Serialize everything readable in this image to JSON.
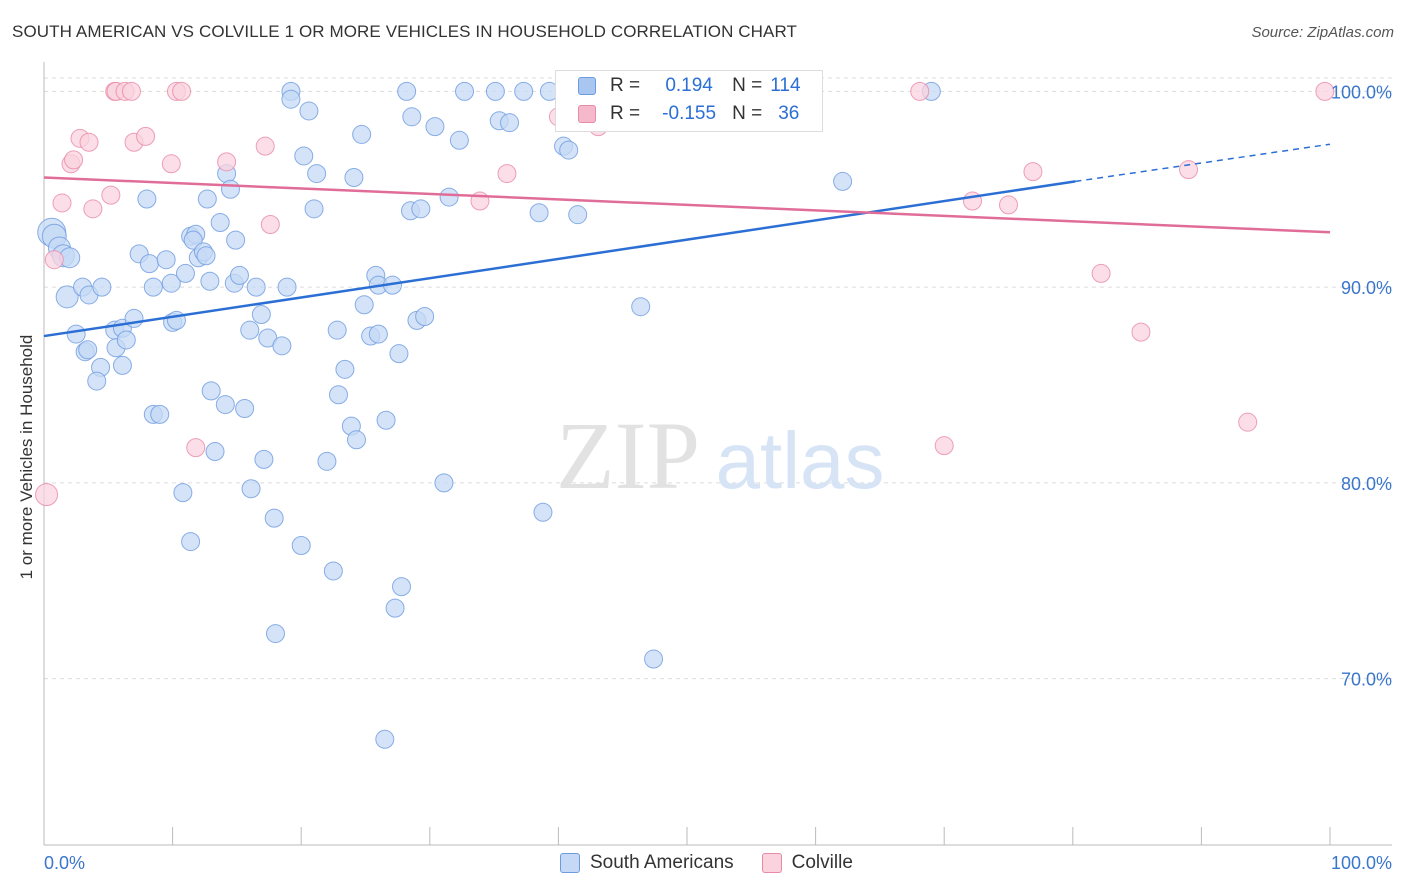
{
  "header": {
    "title": "SOUTH AMERICAN VS COLVILLE 1 OR MORE VEHICLES IN HOUSEHOLD CORRELATION CHART",
    "source": "Source: ZipAtlas.com"
  },
  "watermark": {
    "zip": "ZIP",
    "atlas": "atlas"
  },
  "stats": [
    {
      "r_label": "R =",
      "r_value": "0.194",
      "n_label": "N =",
      "n_value": "114",
      "color": "#a9c6f0",
      "border": "#6e9be0"
    },
    {
      "r_label": "R =",
      "r_value": "-0.155",
      "n_label": "N =",
      "n_value": "36",
      "color": "#f6b9cb",
      "border": "#e88aa8"
    }
  ],
  "legend": [
    {
      "label": "South Americans",
      "color": "#c5d9f6",
      "border": "#6e9be0"
    },
    {
      "label": "Colville",
      "color": "#fad3df",
      "border": "#e88aa8"
    }
  ],
  "chart_data": {
    "type": "scatter",
    "title": "SOUTH AMERICAN VS COLVILLE 1 OR MORE VEHICLES IN HOUSEHOLD CORRELATION CHART",
    "xlabel": "",
    "ylabel": "1 or more Vehicles in Household",
    "xlim": [
      0,
      100
    ],
    "ylim": [
      61.5,
      101.5
    ],
    "x_tick_labels": [
      "0.0%",
      "100.0%"
    ],
    "y_ticks": [
      70,
      80,
      90,
      100
    ],
    "y_tick_labels": [
      "70.0%",
      "80.0%",
      "90.0%",
      "100.0%"
    ],
    "grid": true,
    "legend_position": "bottom-center",
    "series": [
      {
        "name": "South Americans",
        "color": "#6e9be0",
        "fill": "#c5d9f6",
        "trend": {
          "x": [
            0,
            80.2
          ],
          "y": [
            87.5,
            95.4
          ],
          "dashed_to": [
            100,
            97.3
          ],
          "color": "#2b6fd4"
        },
        "points": [
          [
            0.6,
            92.8,
            14
          ],
          [
            0.8,
            92.6,
            12
          ],
          [
            1.2,
            92.0,
            11
          ],
          [
            1.5,
            91.6,
            11
          ],
          [
            2.0,
            91.5,
            10
          ],
          [
            1.8,
            89.5,
            11
          ],
          [
            3.0,
            90.0,
            9
          ],
          [
            3.5,
            89.6,
            9
          ],
          [
            4.5,
            90.0,
            9
          ],
          [
            2.5,
            87.6,
            9
          ],
          [
            3.2,
            86.7,
            9
          ],
          [
            3.4,
            86.8,
            9
          ],
          [
            4.4,
            85.9,
            9
          ],
          [
            4.1,
            85.2,
            9
          ],
          [
            5.5,
            87.8,
            9
          ],
          [
            5.6,
            86.9,
            9
          ],
          [
            6.1,
            87.9,
            9
          ],
          [
            6.4,
            87.3,
            9
          ],
          [
            6.1,
            86.0,
            9
          ],
          [
            7.0,
            88.4,
            9
          ],
          [
            7.4,
            91.7,
            9
          ],
          [
            8.2,
            91.2,
            9
          ],
          [
            8.5,
            90.0,
            9
          ],
          [
            8.0,
            94.5,
            9
          ],
          [
            8.5,
            83.5,
            9
          ],
          [
            9.0,
            83.5,
            9
          ],
          [
            9.5,
            91.4,
            9
          ],
          [
            9.9,
            90.2,
            9
          ],
          [
            10.0,
            88.2,
            9
          ],
          [
            10.3,
            88.3,
            9
          ],
          [
            11.0,
            90.7,
            9
          ],
          [
            11.4,
            92.6,
            9
          ],
          [
            11.8,
            92.7,
            9
          ],
          [
            11.6,
            92.4,
            9
          ],
          [
            12.0,
            91.5,
            9
          ],
          [
            12.4,
            91.8,
            9
          ],
          [
            12.6,
            91.6,
            9
          ],
          [
            12.9,
            90.3,
            9
          ],
          [
            12.7,
            94.5,
            9
          ],
          [
            13.7,
            93.3,
            9
          ],
          [
            13.0,
            84.7,
            9
          ],
          [
            13.3,
            81.6,
            9
          ],
          [
            14.1,
            84.0,
            9
          ],
          [
            14.2,
            95.8,
            9
          ],
          [
            14.5,
            95.0,
            9
          ],
          [
            14.9,
            92.4,
            9
          ],
          [
            14.8,
            90.2,
            9
          ],
          [
            15.2,
            90.6,
            9
          ],
          [
            15.6,
            83.8,
            9
          ],
          [
            16.0,
            87.8,
            9
          ],
          [
            16.5,
            90.0,
            9
          ],
          [
            16.9,
            88.6,
            9
          ],
          [
            17.4,
            87.4,
            9
          ],
          [
            17.1,
            81.2,
            9
          ],
          [
            16.1,
            79.7,
            9
          ],
          [
            17.9,
            78.2,
            9
          ],
          [
            18.9,
            90.0,
            9
          ],
          [
            18.5,
            87.0,
            9
          ],
          [
            19.2,
            100.0,
            9
          ],
          [
            19.2,
            99.6,
            9
          ],
          [
            20.2,
            96.7,
            9
          ],
          [
            20.6,
            99.0,
            9
          ],
          [
            21.2,
            95.8,
            9
          ],
          [
            21.0,
            94.0,
            9
          ],
          [
            22.0,
            81.1,
            9
          ],
          [
            22.5,
            75.5,
            9
          ],
          [
            20.0,
            76.8,
            9
          ],
          [
            18.0,
            72.3,
            9
          ],
          [
            22.8,
            87.8,
            9
          ],
          [
            22.9,
            84.5,
            9
          ],
          [
            23.4,
            85.8,
            9
          ],
          [
            23.9,
            82.9,
            9
          ],
          [
            24.3,
            82.2,
            9
          ],
          [
            24.7,
            97.8,
            9
          ],
          [
            24.1,
            95.6,
            9
          ],
          [
            24.9,
            89.1,
            9
          ],
          [
            25.4,
            87.5,
            9
          ],
          [
            25.8,
            90.6,
            9
          ],
          [
            26.0,
            87.6,
            9
          ],
          [
            26.6,
            83.2,
            9
          ],
          [
            26.0,
            90.1,
            9
          ],
          [
            27.1,
            90.1,
            9
          ],
          [
            27.6,
            86.6,
            9
          ],
          [
            27.3,
            73.6,
            9
          ],
          [
            27.8,
            74.7,
            9
          ],
          [
            26.5,
            66.9,
            9
          ],
          [
            28.2,
            100.0,
            9
          ],
          [
            28.6,
            98.7,
            9
          ],
          [
            28.5,
            93.9,
            9
          ],
          [
            29.3,
            94.0,
            9
          ],
          [
            29.0,
            88.3,
            9
          ],
          [
            29.6,
            88.5,
            9
          ],
          [
            30.4,
            98.2,
            9
          ],
          [
            31.5,
            94.6,
            9
          ],
          [
            31.1,
            80.0,
            9
          ],
          [
            32.3,
            97.5,
            9
          ],
          [
            32.7,
            100.0,
            9
          ],
          [
            35.1,
            100.0,
            9
          ],
          [
            35.4,
            98.5,
            9
          ],
          [
            36.2,
            98.4,
            9
          ],
          [
            37.3,
            100.0,
            9
          ],
          [
            38.5,
            93.8,
            9
          ],
          [
            38.8,
            78.5,
            9
          ],
          [
            39.3,
            100.0,
            9
          ],
          [
            40.4,
            97.2,
            9
          ],
          [
            40.8,
            97.0,
            9
          ],
          [
            41.5,
            93.7,
            9
          ],
          [
            46.4,
            89.0,
            9
          ],
          [
            47.4,
            71.0,
            9
          ],
          [
            59.8,
            100.0,
            9
          ],
          [
            62.1,
            95.4,
            9
          ],
          [
            69.0,
            100.0,
            9
          ],
          [
            10.8,
            79.5,
            9
          ],
          [
            11.4,
            77.0,
            9
          ]
        ]
      },
      {
        "name": "Colville",
        "color": "#e88aa8",
        "fill": "#fad3df",
        "trend": {
          "x": [
            0,
            100
          ],
          "y": [
            95.6,
            92.8
          ],
          "color": "#e06d97"
        },
        "points": [
          [
            0.2,
            79.4,
            11
          ],
          [
            0.8,
            91.4,
            9
          ],
          [
            1.4,
            94.3,
            9
          ],
          [
            2.1,
            96.3,
            9
          ],
          [
            2.3,
            96.5,
            9
          ],
          [
            2.8,
            97.6,
            9
          ],
          [
            3.5,
            97.4,
            9
          ],
          [
            3.8,
            94.0,
            9
          ],
          [
            5.2,
            94.7,
            9
          ],
          [
            5.5,
            100.0,
            9
          ],
          [
            5.6,
            100.0,
            9
          ],
          [
            6.3,
            100.0,
            9
          ],
          [
            6.8,
            100.0,
            9
          ],
          [
            7.0,
            97.4,
            9
          ],
          [
            7.9,
            97.7,
            9
          ],
          [
            9.9,
            96.3,
            9
          ],
          [
            10.3,
            100.0,
            9
          ],
          [
            10.7,
            100.0,
            9
          ],
          [
            11.8,
            81.8,
            9
          ],
          [
            14.2,
            96.4,
            9
          ],
          [
            17.2,
            97.2,
            9
          ],
          [
            17.6,
            93.2,
            9
          ],
          [
            33.9,
            94.4,
            9
          ],
          [
            36.0,
            95.8,
            9
          ],
          [
            40.0,
            98.7,
            9
          ],
          [
            43.1,
            98.2,
            9
          ],
          [
            68.1,
            100.0,
            9
          ],
          [
            70.0,
            81.9,
            9
          ],
          [
            72.2,
            94.4,
            9
          ],
          [
            75.0,
            94.2,
            9
          ],
          [
            76.9,
            95.9,
            9
          ],
          [
            82.2,
            90.7,
            9
          ],
          [
            85.3,
            87.7,
            9
          ],
          [
            89.0,
            96.0,
            9
          ],
          [
            93.6,
            83.1,
            9
          ],
          [
            99.6,
            100.0,
            9
          ]
        ]
      }
    ]
  }
}
